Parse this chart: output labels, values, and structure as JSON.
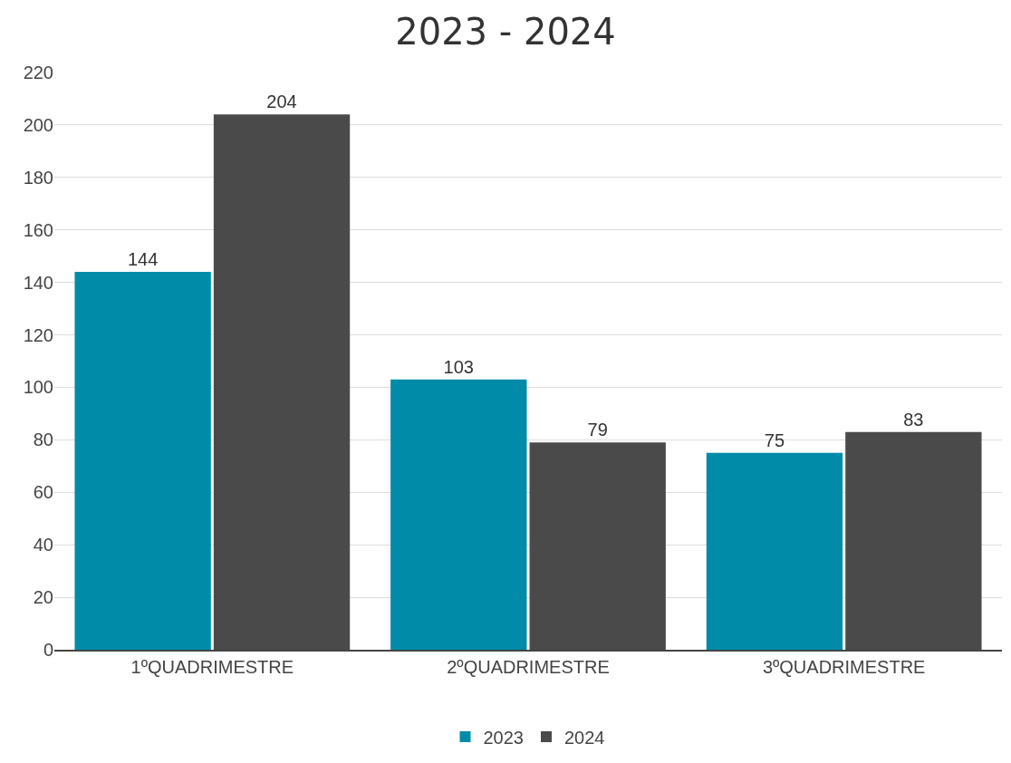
{
  "chart_data": {
    "type": "bar",
    "title": "2023 - 2024",
    "categories": [
      "1ºQUADRIMESTRE",
      "2ºQUADRIMESTRE",
      "3ºQUADRIMESTRE"
    ],
    "series": [
      {
        "name": "2023",
        "color": "#008ba9",
        "values": [
          144,
          103,
          75
        ]
      },
      {
        "name": "2024",
        "color": "#4a4a4a",
        "values": [
          204,
          79,
          83
        ]
      }
    ],
    "ylim": [
      0,
      220
    ],
    "yticks": [
      0,
      20,
      40,
      60,
      80,
      100,
      120,
      140,
      160,
      180,
      200,
      220
    ],
    "grid": "y",
    "legend": "bottom",
    "data_labels": true
  }
}
